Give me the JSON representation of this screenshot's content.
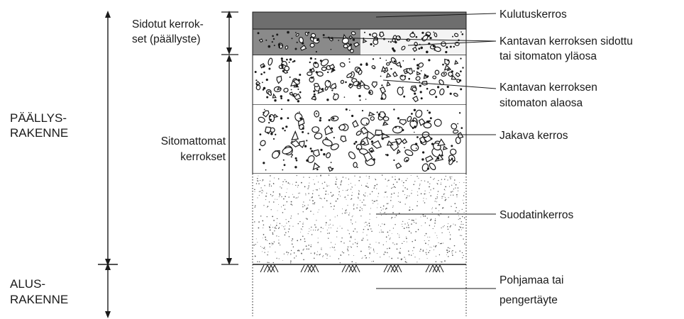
{
  "diagram": {
    "left_labels": {
      "sidotut_line1": "Sidotut kerrok-",
      "sidotut_line2": "set (päällyste)",
      "sitomattomat_line1": "Sitomattomat",
      "sitomattomat_line2": "kerrokset",
      "paallysrakenne_line1": "PÄÄLLYS-",
      "paallysrakenne_line2": "RAKENNE",
      "alusrakenne_line1": "ALUS-",
      "alusrakenne_line2": "RAKENNE"
    },
    "layers": [
      {
        "id": "kulutuskerros",
        "line1": "Kulutuskerros",
        "line2": ""
      },
      {
        "id": "kantava-sidottu",
        "line1": "Kantavan kerroksen sidottu",
        "line2": "tai sitomaton yläosa"
      },
      {
        "id": "kantava-sitomaton",
        "line1": "Kantavan kerroksen",
        "line2": "sitomaton alaosa"
      },
      {
        "id": "jakava",
        "line1": "Jakava kerros",
        "line2": ""
      },
      {
        "id": "suodatin",
        "line1": "Suodatinkerros",
        "line2": ""
      },
      {
        "id": "pohjamaa",
        "line1": "Pohjamaa tai",
        "line2": "pengertäyte"
      }
    ],
    "colors": {
      "ink": "#1a1a1a",
      "wearing_course": "#6e6e6e",
      "bound_base": "#8a8a8a",
      "stones": "#ffffff"
    }
  }
}
